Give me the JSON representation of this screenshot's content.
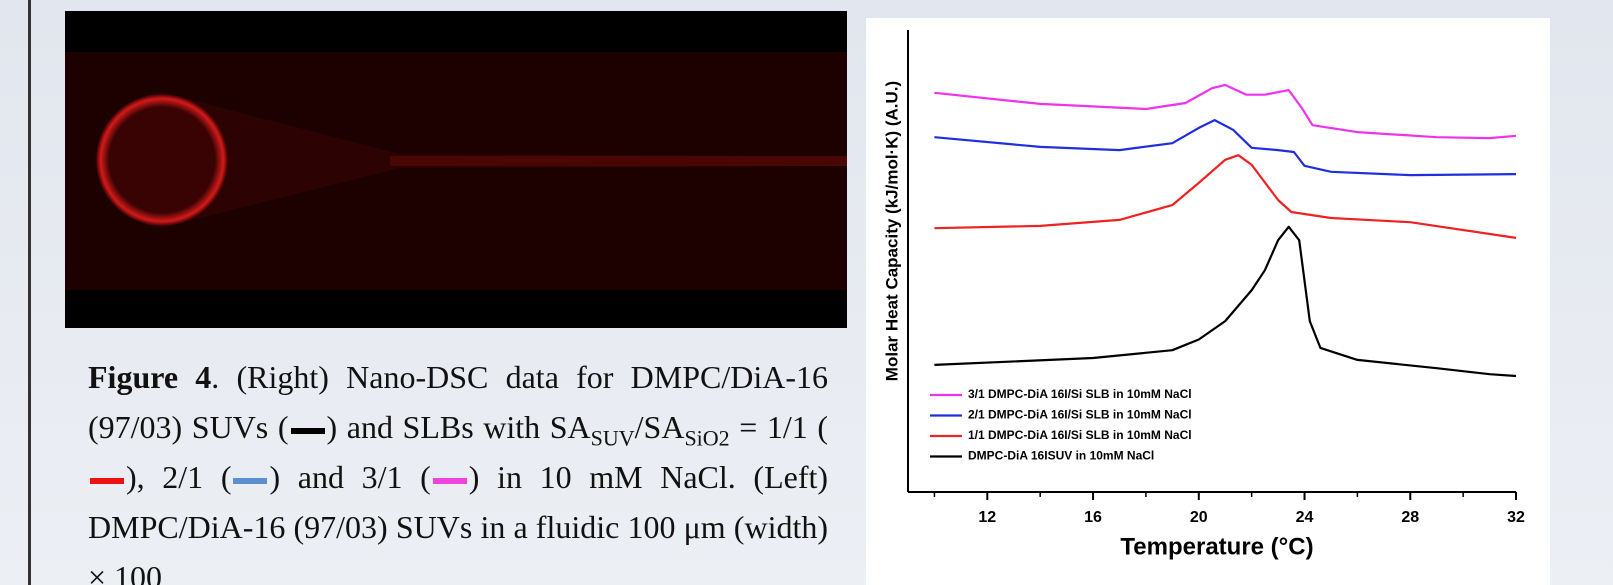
{
  "chart_data": {
    "type": "line",
    "y_label": "Molar Heat Capacity (kJ/mol·K) (A.U.)",
    "x_label": "Temperature (°C)",
    "xlim": [
      9,
      32
    ],
    "xticks": [
      12,
      16,
      20,
      24,
      28,
      32
    ],
    "xminorticks": [
      10,
      14,
      18,
      22,
      26,
      30
    ],
    "ylim": [
      0,
      100
    ],
    "legend": "lower-left",
    "series": [
      {
        "name": "3/1 DMPC-DiA 16I/Si SLB in 10mM NaCl",
        "color": "#ee33ee",
        "x": [
          10,
          14,
          18,
          19.5,
          20.5,
          21,
          21.8,
          22.5,
          23.4,
          23.9,
          24.3,
          26,
          29,
          31,
          32
        ],
        "values": [
          86.4,
          84,
          82.9,
          84.2,
          87.4,
          88.1,
          86,
          86,
          87,
          83.1,
          79.4,
          77.9,
          76.8,
          76.6,
          77.1
        ]
      },
      {
        "name": "2/1 DMPC-DiA 16I/Si SLB in 10mM NaCl",
        "color": "#1f2fe0",
        "x": [
          10,
          14,
          17,
          19,
          20,
          20.6,
          21.3,
          22,
          23,
          23.6,
          24,
          25,
          28,
          32
        ],
        "values": [
          76.8,
          74.7,
          74,
          75.5,
          78.8,
          80.5,
          78.4,
          74.5,
          74,
          73.6,
          70.6,
          69.3,
          68.6,
          68.8
        ]
      },
      {
        "name": "1/1 DMPC-DiA 16I/Si SLB in 10mM NaCl",
        "color": "#ee2222",
        "x": [
          10,
          14,
          17,
          19,
          20,
          21,
          21.5,
          22,
          23,
          23.5,
          25,
          28,
          32
        ],
        "values": [
          57.1,
          57.6,
          58.9,
          62.1,
          66.9,
          71.9,
          72.9,
          70.8,
          63.2,
          60.6,
          59.3,
          58.4,
          55
        ]
      },
      {
        "name": "DMPC-DiA 16ISUV in 10mM NaCl",
        "color": "#000000",
        "x": [
          10,
          16,
          19,
          20,
          21,
          22,
          22.5,
          23,
          23.4,
          23.8,
          24.2,
          24.6,
          26,
          29,
          31,
          32
        ],
        "values": [
          27.5,
          29,
          30.7,
          33,
          37,
          43.7,
          48,
          54.5,
          57.4,
          54.5,
          37,
          31.2,
          28.6,
          26.8,
          25.5,
          25.1
        ]
      }
    ]
  },
  "caption": {
    "label": "Figure 4",
    "parts": [
      ". (Right) Nano-DSC data for DMPC/DiA-16 (97/03) SUVs (",
      ") and SLBs with SA",
      "SUV",
      "/SA",
      "SiO2",
      " = 1/1 (",
      "), 2/1 (",
      ") and 3/1 (",
      ") in 10 mM NaCl.  (Left) DMPC/DiA-16 (97/03) SUVs in a fluidic 100 μm (width) × 100"
    ]
  }
}
